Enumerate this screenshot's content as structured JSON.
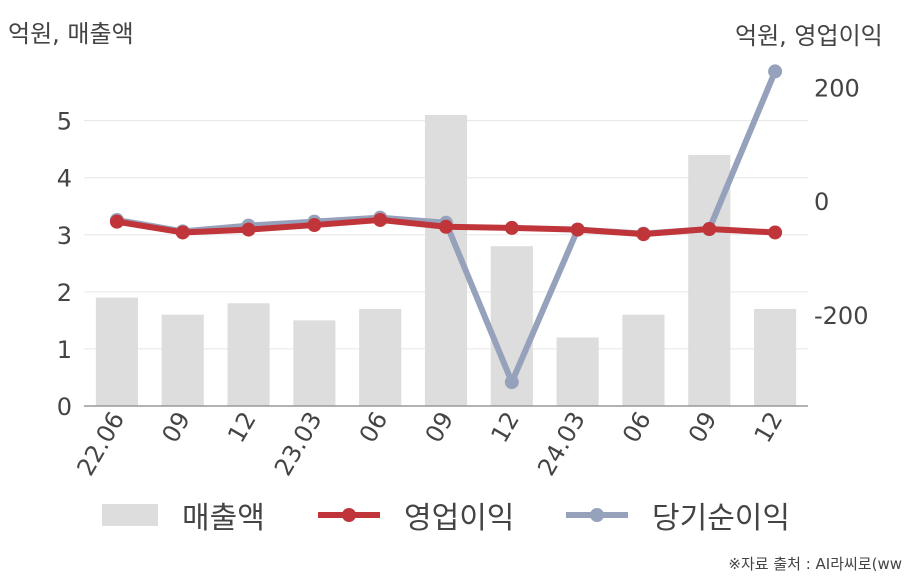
{
  "units": {
    "left": "억원, 매출액",
    "right": "억원, 영업이익"
  },
  "source": "※자료 출처 : AI라씨로(ww",
  "legend": {
    "revenue": "매출액",
    "operating": "영업이익",
    "net": "당기순이익"
  },
  "colors": {
    "revenue": "#dddddd",
    "operating": "#c0353a",
    "net": "#96a1bb"
  },
  "chart_data": {
    "type": "bar+line",
    "categories": [
      "22.06",
      "09",
      "12",
      "23.03",
      "06",
      "09",
      "12",
      "24.03",
      "06",
      "09",
      "12"
    ],
    "left_axis": {
      "ylim": [
        0,
        5.8
      ],
      "ticks": [
        0,
        1,
        2,
        3,
        4,
        5
      ]
    },
    "right_axis": {
      "ylim": [
        -360,
        285
      ],
      "ticks": [
        -200,
        0,
        200
      ]
    },
    "series": [
      {
        "name": "매출액",
        "type": "bar",
        "axis": "left",
        "values": [
          1.9,
          1.6,
          1.8,
          1.5,
          1.7,
          5.1,
          2.8,
          1.2,
          1.6,
          4.4,
          1.7
        ]
      },
      {
        "name": "영업이익",
        "type": "line",
        "axis": "right",
        "values": [
          -36,
          -55,
          -50,
          -42,
          -33,
          -45,
          -47,
          -50,
          -58,
          -49,
          -55
        ]
      },
      {
        "name": "당기순이익",
        "type": "line",
        "axis": "right",
        "values": [
          -33,
          -53,
          -43,
          -36,
          -29,
          -38,
          -318,
          -50,
          -57,
          -49,
          228
        ]
      }
    ],
    "grid": true,
    "legend_position": "bottom"
  }
}
